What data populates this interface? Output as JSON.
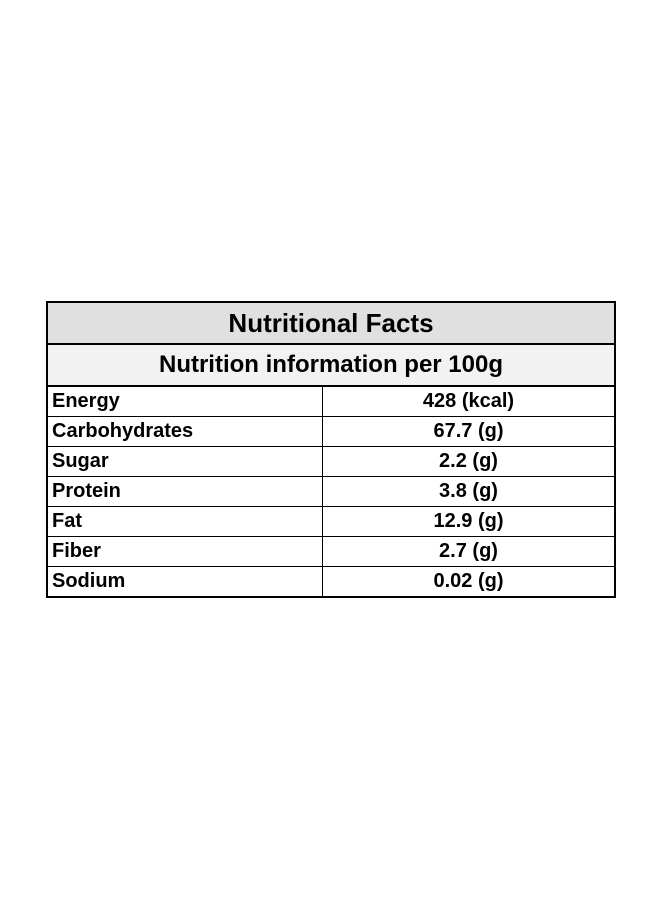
{
  "table": {
    "title": "Nutritional Facts",
    "subtitle": "Nutrition information per 100g",
    "rows": [
      [
        "Energy",
        "428 (kcal)"
      ],
      [
        "Carbohydrates",
        "67.7 (g)"
      ],
      [
        "Sugar",
        "2.2 (g)"
      ],
      [
        "Protein",
        "3.8 (g)"
      ],
      [
        "Fat",
        "12.9 (g)"
      ],
      [
        "Fiber",
        "2.7 (g)"
      ],
      [
        "Sodium",
        "0.02 (g)"
      ]
    ]
  }
}
